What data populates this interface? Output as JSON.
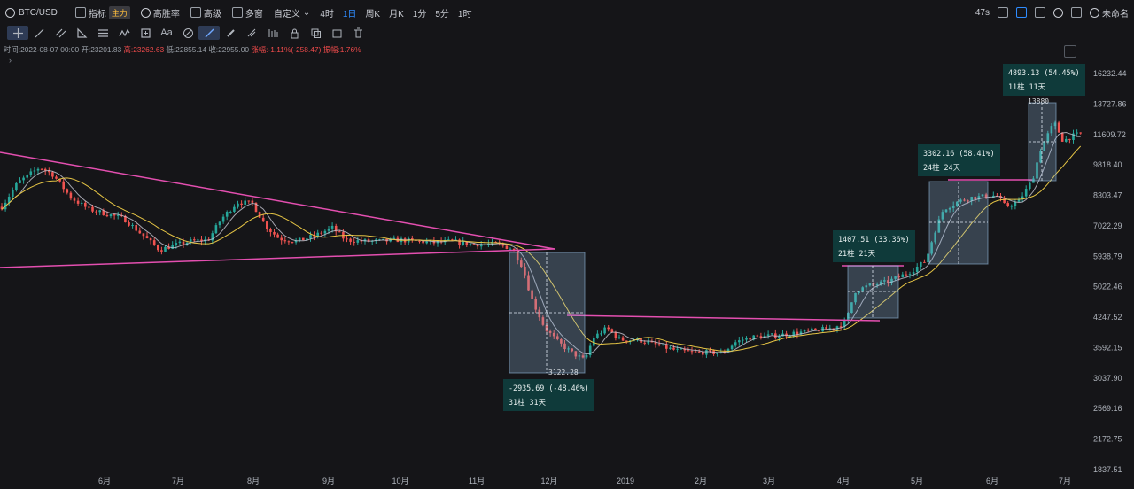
{
  "topbar": {
    "symbol": "BTC/USD",
    "indicator_label": "指标",
    "main_badge": "主力",
    "winrate_label": "高胜率",
    "advanced_label": "高级",
    "multiwindow_label": "多窗",
    "custom_label": "自定义",
    "timeframes": [
      "4时",
      "1日",
      "周K",
      "月K",
      "1分",
      "5分",
      "1时"
    ],
    "active_timeframe": "1日",
    "latency": "47s",
    "layout_name": "未命名"
  },
  "ohlc": {
    "time": "时间:2022-08-07 00:00",
    "open": "开:23201.83",
    "high": "高:23262.63",
    "low": "低:22855.14",
    "close": "收:22955.00",
    "change": "涨幅:-1.11%(-258.47)",
    "amplitude": "振幅:1.76%"
  },
  "measures": [
    {
      "line1": "-2935.69 (-48.46%)",
      "line2": "31柱 31天",
      "extreme": "3122.28"
    },
    {
      "line1": "1407.51 (33.36%)",
      "line2": "21柱 21天"
    },
    {
      "line1": "3302.16 (58.41%)",
      "line2": "24柱 24天"
    },
    {
      "line1": "4893.13 (54.45%)",
      "line2": "11柱 11天",
      "extreme": "13880"
    }
  ],
  "chart_data": {
    "type": "candlestick",
    "y_scale": "log",
    "y_ticks": [
      "16232.44",
      "13727.86",
      "11609.72",
      "9818.40",
      "8303.47",
      "7022.29",
      "5938.79",
      "5022.46",
      "4247.52",
      "3592.15",
      "3037.90",
      "2569.16",
      "2172.75",
      "1837.51"
    ],
    "x_ticks": [
      "6月",
      "7月",
      "8月",
      "9月",
      "10月",
      "11月",
      "12月",
      "2019",
      "2月",
      "3月",
      "4月",
      "5月",
      "6月",
      "7月"
    ],
    "colors": {
      "up": "#26a69a",
      "down": "#ef5350",
      "ma_fast": "#c9c9d6",
      "ma_slow": "#e6c545",
      "trendline": "#e44fb0",
      "measure_box": "#8fb8dc"
    }
  }
}
